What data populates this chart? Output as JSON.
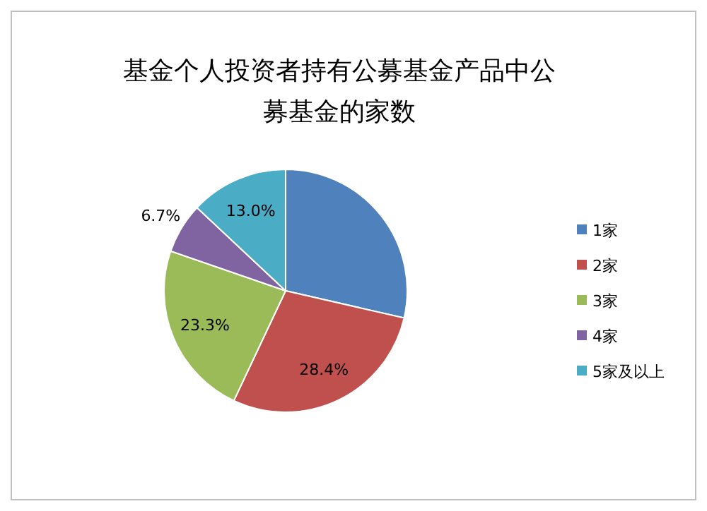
{
  "chart_data": {
    "type": "pie",
    "title": "基金个人投资者持有公募基金产品中公募基金的家数",
    "categories": [
      "1家",
      "2家",
      "3家",
      "4家",
      "5家及以上"
    ],
    "values": [
      28.6,
      28.4,
      23.3,
      6.7,
      13.0
    ],
    "value_labels": [
      null,
      "28.4%",
      "23.3%",
      "6.7%",
      "13.0%"
    ],
    "colors": [
      "#4f81bd",
      "#c0504d",
      "#9bbb59",
      "#8064a2",
      "#4bacc6"
    ],
    "legend": "right"
  }
}
